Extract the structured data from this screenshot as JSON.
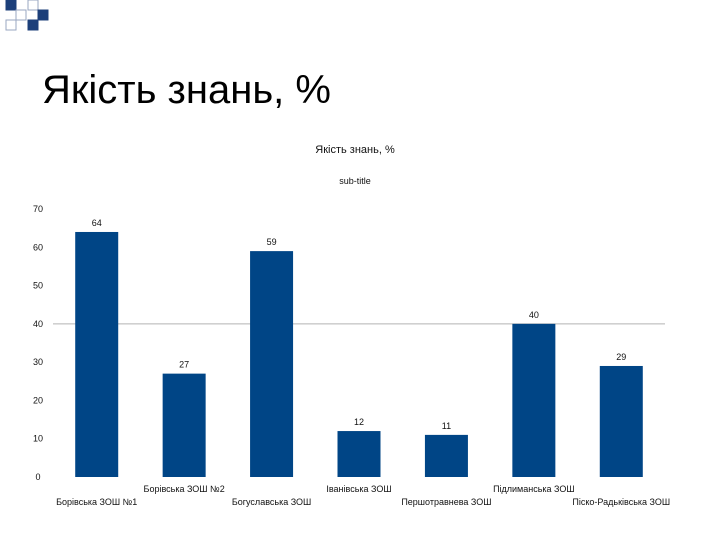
{
  "slide": {
    "title": "Якість знань, %"
  },
  "colors": {
    "bar": "#004586",
    "grid": "#b3b3b3",
    "deco_fill": "#1c3f7a",
    "deco_outline": "#9aa7c2"
  },
  "chart_data": {
    "type": "bar",
    "title": "Якість знань, %",
    "subtitle": "sub-title",
    "xlabel": "",
    "ylabel": "",
    "ylim": [
      0,
      70
    ],
    "yticks": [
      0,
      10,
      20,
      30,
      40,
      50,
      60,
      70
    ],
    "grid": false,
    "highlight_line_at": 40,
    "categories": [
      "Борівська ЗОШ №1",
      "Борівська ЗОШ №2",
      "Богуславська ЗОШ",
      "Іванівська ЗОШ",
      "Першотравнева ЗОШ",
      "Підлиманська ЗОШ",
      "Піско-Радьківська ЗОШ"
    ],
    "values": [
      64,
      27,
      59,
      12,
      11,
      40,
      29
    ]
  }
}
